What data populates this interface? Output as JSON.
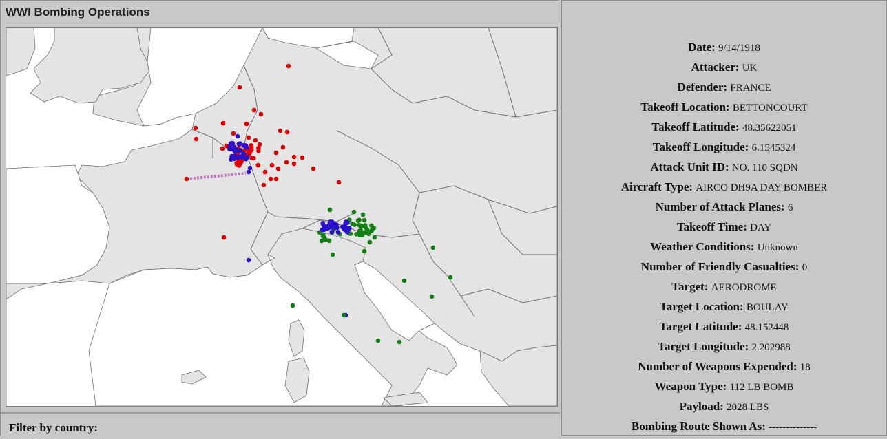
{
  "app": {
    "title": "WWI Bombing Operations"
  },
  "filter": {
    "label": "Filter by country:"
  },
  "map": {
    "land_color": "#e4e4e4",
    "sea_color": "#ffffff",
    "border_color": "#6e6e6e",
    "marker_colors": {
      "red": "#dd0000",
      "blue": "#2a10c8",
      "green": "#137f13"
    },
    "route_color": "#c07ac0"
  },
  "details": [
    {
      "key": "Date:",
      "value": "9/14/1918"
    },
    {
      "key": "Attacker:",
      "value": "UK"
    },
    {
      "key": "Defender:",
      "value": "FRANCE"
    },
    {
      "key": "Takeoff Location:",
      "value": "BETTONCOURT"
    },
    {
      "key": "Takeoff Latitude:",
      "value": "48.35622051"
    },
    {
      "key": "Takeoff Longitude:",
      "value": "6.1545324"
    },
    {
      "key": "Attack Unit ID:",
      "value": "NO. 110 SQDN"
    },
    {
      "key": "Aircraft Type:",
      "value": "AIRCO DH9A DAY BOMBER"
    },
    {
      "key": "Number of Attack Planes:",
      "value": "6"
    },
    {
      "key": "Takeoff Time:",
      "value": "DAY"
    },
    {
      "key": "Weather Conditions:",
      "value": "Unknown"
    },
    {
      "key": "Number of Friendly Casualties:",
      "value": "0"
    },
    {
      "key": "Target:",
      "value": "AERODROME"
    },
    {
      "key": "Target Location:",
      "value": "BOULAY"
    },
    {
      "key": "Target Latitude:",
      "value": "48.152448"
    },
    {
      "key": "Target Longitude:",
      "value": "2.202988"
    },
    {
      "key": "Number of Weapons Expended:",
      "value": "18"
    },
    {
      "key": "Weapon Type:",
      "value": "112 LB BOMB"
    },
    {
      "key": "Payload:",
      "value": "2028 LBS"
    },
    {
      "key": "Bombing Route Shown As:",
      "value": "--------------"
    }
  ]
}
